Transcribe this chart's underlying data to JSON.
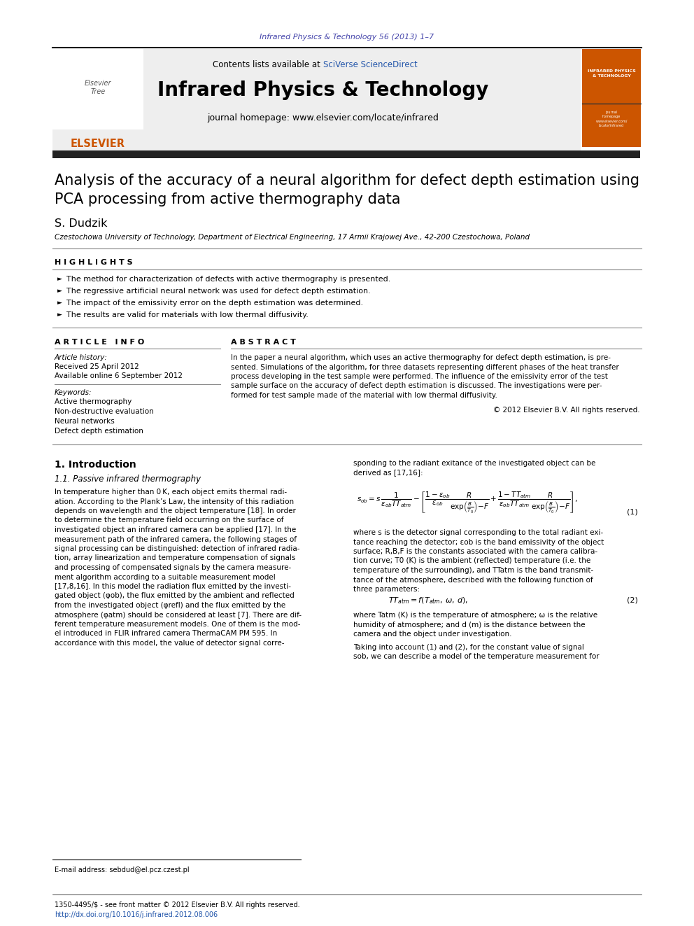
{
  "journal_ref": "Infrared Physics & Technology 56 (2013) 1–7",
  "journal_ref_color": "#4444aa",
  "contents_text": "Contents lists available at ",
  "sciverse_text": "SciVerse ScienceDirect",
  "sciverse_color": "#2255aa",
  "journal_title": "Infrared Physics & Technology",
  "journal_homepage": "journal homepage: www.elsevier.com/locate/infrared",
  "paper_title_line1": "Analysis of the accuracy of a neural algorithm for defect depth estimation using",
  "paper_title_line2": "PCA processing from active thermography data",
  "author": "S. Dudzik",
  "affiliation": "Czestochowa University of Technology, Department of Electrical Engineering, 17 Armii Krajowej Ave., 42-200 Czestochowa, Poland",
  "highlights_title": "H I G H L I G H T S",
  "highlights": [
    "The method for characterization of defects with active thermography is presented.",
    "The regressive artificial neural network was used for defect depth estimation.",
    "The impact of the emissivity error on the depth estimation was determined.",
    "The results are valid for materials with low thermal diffusivity."
  ],
  "article_info_title": "A R T I C L E   I N F O",
  "abstract_title": "A B S T R A C T",
  "article_history_label": "Article history:",
  "received": "Received 25 April 2012",
  "available": "Available online 6 September 2012",
  "keywords_label": "Keywords:",
  "keywords": [
    "Active thermography",
    "Non-destructive evaluation",
    "Neural networks",
    "Defect depth estimation"
  ],
  "copyright": "© 2012 Elsevier B.V. All rights reserved.",
  "intro_title": "1. Introduction",
  "intro_subsection": "1.1. Passive infrared thermography",
  "eq1_number": "(1)",
  "eq2_number": "(2)",
  "footnote_email": "E-mail address: sebdud@el.pcz.czest.pl",
  "footer_issn": "1350-4495/$ - see front matter © 2012 Elsevier B.V. All rights reserved.",
  "footer_doi": "http://dx.doi.org/10.1016/j.infrared.2012.08.006",
  "footer_doi_color": "#2255aa",
  "bg_header_color": "#eeeeee",
  "orange_color": "#cc5500",
  "dark_bar_color": "#222222",
  "gray_line_color": "#888888"
}
